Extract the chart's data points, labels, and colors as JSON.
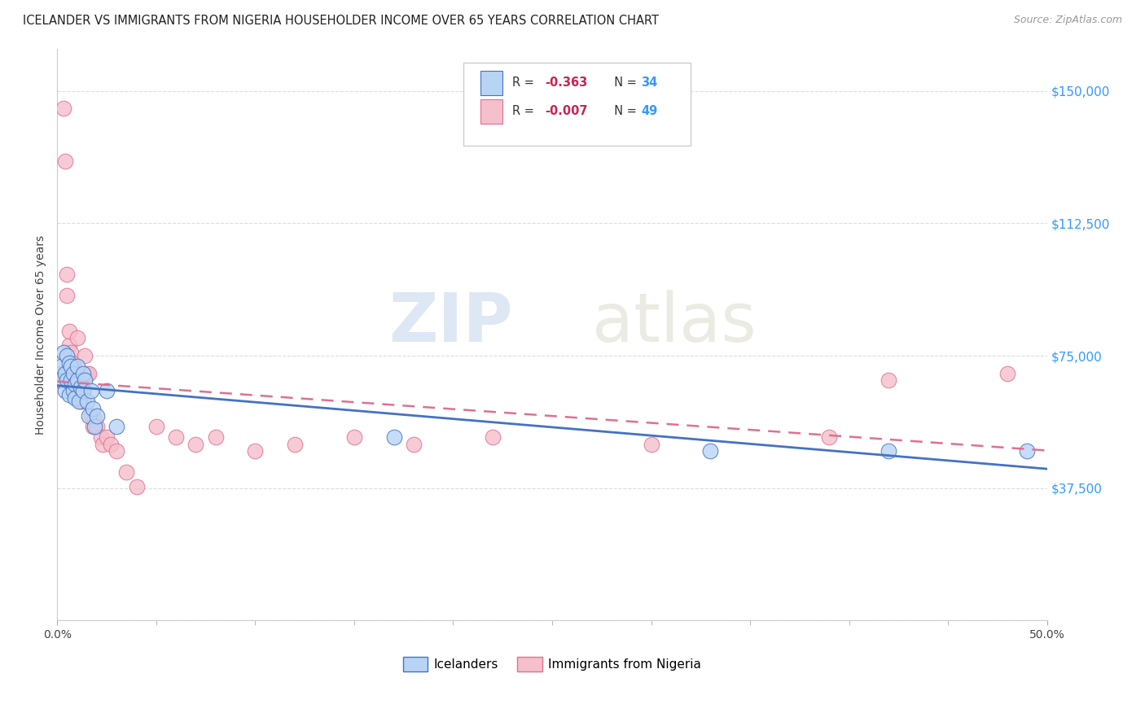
{
  "title": "ICELANDER VS IMMIGRANTS FROM NIGERIA HOUSEHOLDER INCOME OVER 65 YEARS CORRELATION CHART",
  "source": "Source: ZipAtlas.com",
  "ylabel": "Householder Income Over 65 years",
  "y_ticks": [
    0,
    37500,
    75000,
    112500,
    150000
  ],
  "y_tick_labels": [
    "",
    "$37,500",
    "$75,000",
    "$112,500",
    "$150,000"
  ],
  "legend_label1": "Icelanders",
  "legend_label2": "Immigrants from Nigeria",
  "R1": "-0.363",
  "N1": "34",
  "R2": "-0.007",
  "N2": "49",
  "color1": "#b8d4f5",
  "color2": "#f5bfcc",
  "line_color1": "#4472c4",
  "line_color2": "#e07090",
  "xlim": [
    0,
    0.5
  ],
  "ylim": [
    0,
    162000
  ],
  "icelanders_x": [
    0.001,
    0.002,
    0.003,
    0.004,
    0.004,
    0.005,
    0.005,
    0.006,
    0.006,
    0.007,
    0.007,
    0.008,
    0.008,
    0.009,
    0.009,
    0.01,
    0.01,
    0.011,
    0.012,
    0.013,
    0.013,
    0.014,
    0.015,
    0.016,
    0.017,
    0.018,
    0.019,
    0.02,
    0.025,
    0.03,
    0.17,
    0.33,
    0.42,
    0.49
  ],
  "icelanders_y": [
    68000,
    72000,
    76000,
    65000,
    70000,
    75000,
    68000,
    64000,
    73000,
    68000,
    72000,
    65000,
    70000,
    67000,
    63000,
    68000,
    72000,
    62000,
    66000,
    70000,
    65000,
    68000,
    62000,
    58000,
    65000,
    60000,
    55000,
    58000,
    65000,
    55000,
    52000,
    48000,
    48000,
    48000
  ],
  "nigeria_x": [
    0.001,
    0.002,
    0.003,
    0.004,
    0.005,
    0.005,
    0.006,
    0.006,
    0.007,
    0.007,
    0.008,
    0.008,
    0.009,
    0.009,
    0.01,
    0.01,
    0.011,
    0.011,
    0.012,
    0.012,
    0.013,
    0.013,
    0.014,
    0.015,
    0.016,
    0.017,
    0.018,
    0.019,
    0.02,
    0.022,
    0.023,
    0.025,
    0.027,
    0.03,
    0.035,
    0.04,
    0.05,
    0.06,
    0.07,
    0.08,
    0.1,
    0.12,
    0.15,
    0.18,
    0.22,
    0.3,
    0.39,
    0.42,
    0.48
  ],
  "nigeria_y": [
    68000,
    70000,
    145000,
    130000,
    92000,
    98000,
    78000,
    82000,
    76000,
    68000,
    72000,
    73000,
    68000,
    65000,
    80000,
    70000,
    68000,
    63000,
    62000,
    68000,
    65000,
    62000,
    75000,
    70000,
    70000,
    58000,
    55000,
    57000,
    55000,
    52000,
    50000,
    52000,
    50000,
    48000,
    42000,
    38000,
    55000,
    52000,
    50000,
    52000,
    48000,
    50000,
    52000,
    50000,
    52000,
    50000,
    52000,
    68000,
    70000
  ]
}
